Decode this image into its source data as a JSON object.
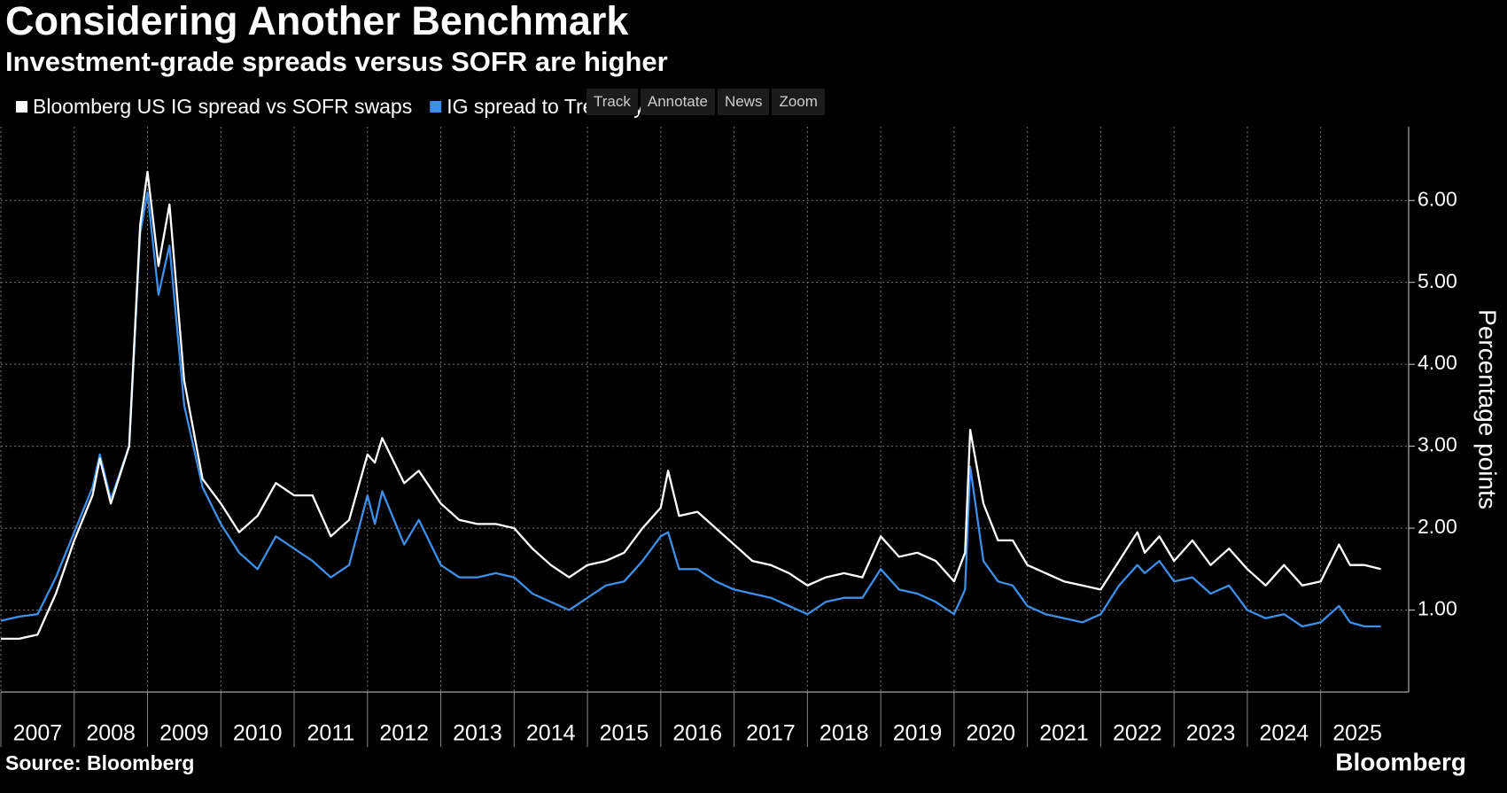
{
  "chart_data": {
    "type": "line",
    "title": "Considering Another Benchmark",
    "subtitle": "Investment-grade spreads versus SOFR are higher",
    "y_label": "Percentage points",
    "source": "Source: Bloomberg",
    "brand": "Bloomberg",
    "x": [
      2007.0,
      2007.25,
      2007.5,
      2007.75,
      2008.0,
      2008.25,
      2008.35,
      2008.5,
      2008.75,
      2008.9,
      2009.0,
      2009.15,
      2009.3,
      2009.5,
      2009.75,
      2010.0,
      2010.25,
      2010.5,
      2010.75,
      2011.0,
      2011.25,
      2011.5,
      2011.75,
      2012.0,
      2012.1,
      2012.2,
      2012.5,
      2012.7,
      2013.0,
      2013.25,
      2013.5,
      2013.75,
      2014.0,
      2014.25,
      2014.5,
      2014.75,
      2015.0,
      2015.25,
      2015.5,
      2015.75,
      2016.0,
      2016.1,
      2016.25,
      2016.5,
      2016.75,
      2017.0,
      2017.25,
      2017.5,
      2017.75,
      2018.0,
      2018.25,
      2018.5,
      2018.75,
      2019.0,
      2019.25,
      2019.5,
      2019.75,
      2020.0,
      2020.15,
      2020.22,
      2020.4,
      2020.6,
      2020.8,
      2021.0,
      2021.25,
      2021.5,
      2021.75,
      2022.0,
      2022.25,
      2022.5,
      2022.6,
      2022.8,
      2023.0,
      2023.25,
      2023.5,
      2023.75,
      2024.0,
      2024.25,
      2024.5,
      2024.75,
      2025.0,
      2025.25,
      2025.4,
      2025.6,
      2025.82
    ],
    "series": [
      {
        "name": "Bloomberg US IG spread vs SOFR swaps",
        "color": "#ffffff",
        "values": [
          0.65,
          0.65,
          0.7,
          1.2,
          1.85,
          2.4,
          2.85,
          2.3,
          3.0,
          5.7,
          6.35,
          5.2,
          5.95,
          3.8,
          2.6,
          2.3,
          1.95,
          2.15,
          2.55,
          2.4,
          2.4,
          1.9,
          2.1,
          2.9,
          2.8,
          3.1,
          2.55,
          2.7,
          2.3,
          2.1,
          2.05,
          2.05,
          2.0,
          1.75,
          1.55,
          1.4,
          1.55,
          1.6,
          1.7,
          2.0,
          2.25,
          2.7,
          2.15,
          2.2,
          2.0,
          1.8,
          1.6,
          1.55,
          1.45,
          1.3,
          1.4,
          1.45,
          1.4,
          1.9,
          1.65,
          1.7,
          1.6,
          1.35,
          1.7,
          3.2,
          2.3,
          1.85,
          1.85,
          1.55,
          1.45,
          1.35,
          1.3,
          1.25,
          1.6,
          1.95,
          1.7,
          1.9,
          1.6,
          1.85,
          1.55,
          1.75,
          1.5,
          1.3,
          1.55,
          1.3,
          1.35,
          1.8,
          1.55,
          1.55,
          1.5
        ]
      },
      {
        "name": "IG spread to Treasury",
        "color": "#3d8fe8",
        "values": [
          0.87,
          0.92,
          0.95,
          1.4,
          1.95,
          2.5,
          2.9,
          2.35,
          3.0,
          5.6,
          6.1,
          4.85,
          5.45,
          3.5,
          2.5,
          2.05,
          1.7,
          1.5,
          1.9,
          1.75,
          1.6,
          1.4,
          1.55,
          2.4,
          2.05,
          2.45,
          1.8,
          2.1,
          1.55,
          1.4,
          1.4,
          1.45,
          1.4,
          1.2,
          1.1,
          1.0,
          1.15,
          1.3,
          1.35,
          1.6,
          1.9,
          1.95,
          1.5,
          1.5,
          1.35,
          1.25,
          1.2,
          1.15,
          1.05,
          0.95,
          1.1,
          1.15,
          1.15,
          1.5,
          1.25,
          1.2,
          1.1,
          0.95,
          1.25,
          2.75,
          1.6,
          1.35,
          1.3,
          1.05,
          0.95,
          0.9,
          0.85,
          0.95,
          1.3,
          1.55,
          1.45,
          1.6,
          1.35,
          1.4,
          1.2,
          1.3,
          1.0,
          0.9,
          0.95,
          0.8,
          0.85,
          1.05,
          0.85,
          0.8,
          0.8
        ]
      }
    ],
    "xlim": [
      2007,
      2026.2
    ],
    "xticks": [
      {
        "value": 2007,
        "label": "2007"
      },
      {
        "value": 2008,
        "label": "2008"
      },
      {
        "value": 2009,
        "label": "2009"
      },
      {
        "value": 2010,
        "label": "2010"
      },
      {
        "value": 2011,
        "label": "2011"
      },
      {
        "value": 2012,
        "label": "2012"
      },
      {
        "value": 2013,
        "label": "2013"
      },
      {
        "value": 2014,
        "label": "2014"
      },
      {
        "value": 2015,
        "label": "2015"
      },
      {
        "value": 2016,
        "label": "2016"
      },
      {
        "value": 2017,
        "label": "2017"
      },
      {
        "value": 2018,
        "label": "2018"
      },
      {
        "value": 2019,
        "label": "2019"
      },
      {
        "value": 2020,
        "label": "2020"
      },
      {
        "value": 2021,
        "label": "2021"
      },
      {
        "value": 2022,
        "label": "2022"
      },
      {
        "value": 2023,
        "label": "2023"
      },
      {
        "value": 2024,
        "label": "2024"
      },
      {
        "value": 2025,
        "label": "2025"
      }
    ],
    "ylim": [
      0,
      6.9
    ],
    "yticks": [
      {
        "value": 1,
        "label": "1.00"
      },
      {
        "value": 2,
        "label": "2.00"
      },
      {
        "value": 3,
        "label": "3.00"
      },
      {
        "value": 4,
        "label": "4.00"
      },
      {
        "value": 5,
        "label": "5.00"
      },
      {
        "value": 6,
        "label": "6.00"
      }
    ],
    "grid": true
  },
  "toolbar": [
    "Track",
    "Annotate",
    "News",
    "Zoom"
  ]
}
